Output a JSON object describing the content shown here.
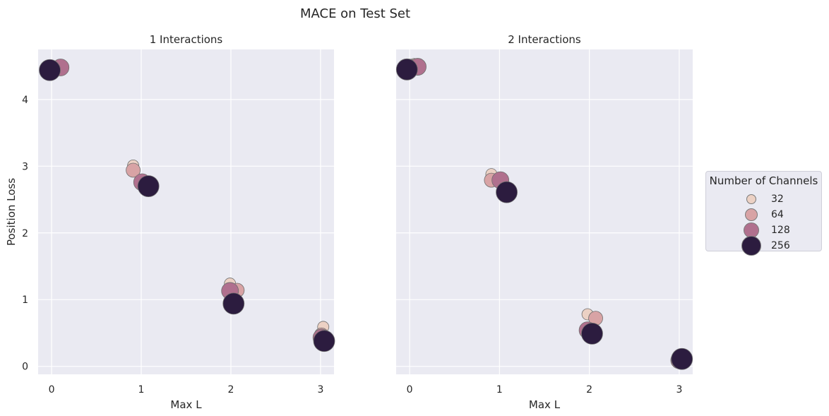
{
  "figure": {
    "suptitle": "MACE on Test Set"
  },
  "chart_data": [
    {
      "type": "scatter",
      "title": "1 Interactions",
      "xlabel": "Max L",
      "ylabel": "Position Loss",
      "xticks": [
        0,
        1,
        2,
        3
      ],
      "yticks": [
        0,
        1,
        2,
        3,
        4
      ],
      "xlim": [
        -0.15,
        3.15
      ],
      "ylim": [
        -0.12,
        4.75
      ],
      "grid": true,
      "series": [
        {
          "name": "32",
          "x": [
            0.07,
            0.91,
            1.99,
            3.03
          ],
          "y": [
            4.45,
            3.01,
            1.24,
            0.59
          ]
        },
        {
          "name": "64",
          "x": [
            0.02,
            0.91,
            2.07,
            3.01
          ],
          "y": [
            4.45,
            2.94,
            1.14,
            0.47
          ]
        },
        {
          "name": "128",
          "x": [
            0.1,
            1.01,
            1.99,
            3.01
          ],
          "y": [
            4.48,
            2.76,
            1.13,
            0.43
          ]
        },
        {
          "name": "256",
          "x": [
            -0.02,
            1.08,
            2.03,
            3.04
          ],
          "y": [
            4.44,
            2.7,
            0.94,
            0.38
          ]
        }
      ]
    },
    {
      "type": "scatter",
      "title": "2 Interactions",
      "xlabel": "Max L",
      "ylabel": "",
      "xticks": [
        0,
        1,
        2,
        3
      ],
      "yticks": [
        0,
        1,
        2,
        3,
        4
      ],
      "xlim": [
        -0.15,
        3.15
      ],
      "ylim": [
        -0.12,
        4.75
      ],
      "grid": true,
      "series": [
        {
          "name": "32",
          "x": [
            0.05,
            0.91,
            1.98,
            3.02
          ],
          "y": [
            4.53,
            2.88,
            0.78,
            0.16
          ]
        },
        {
          "name": "64",
          "x": [
            0.0,
            0.91,
            2.07,
            3.0
          ],
          "y": [
            4.5,
            2.79,
            0.72,
            0.08
          ]
        },
        {
          "name": "128",
          "x": [
            0.09,
            1.01,
            1.98,
            3.0
          ],
          "y": [
            4.49,
            2.79,
            0.54,
            0.09
          ]
        },
        {
          "name": "256",
          "x": [
            -0.03,
            1.08,
            2.03,
            3.03
          ],
          "y": [
            4.45,
            2.61,
            0.49,
            0.11
          ]
        }
      ]
    }
  ],
  "legend": {
    "title": "Number of Channels",
    "placement": "right",
    "items": [
      {
        "label": "32",
        "color": "#ecd1c4",
        "size": 8
      },
      {
        "label": "64",
        "color": "#d8a3a5",
        "size": 10
      },
      {
        "label": "128",
        "color": "#b0708e",
        "size": 12
      },
      {
        "label": "256",
        "color": "#2c1c3f",
        "size": 15
      }
    ]
  },
  "colors": {
    "panel_bg": "#eaeaf2",
    "grid": "#ffffff",
    "marker_edge": "#6e6e6e"
  }
}
